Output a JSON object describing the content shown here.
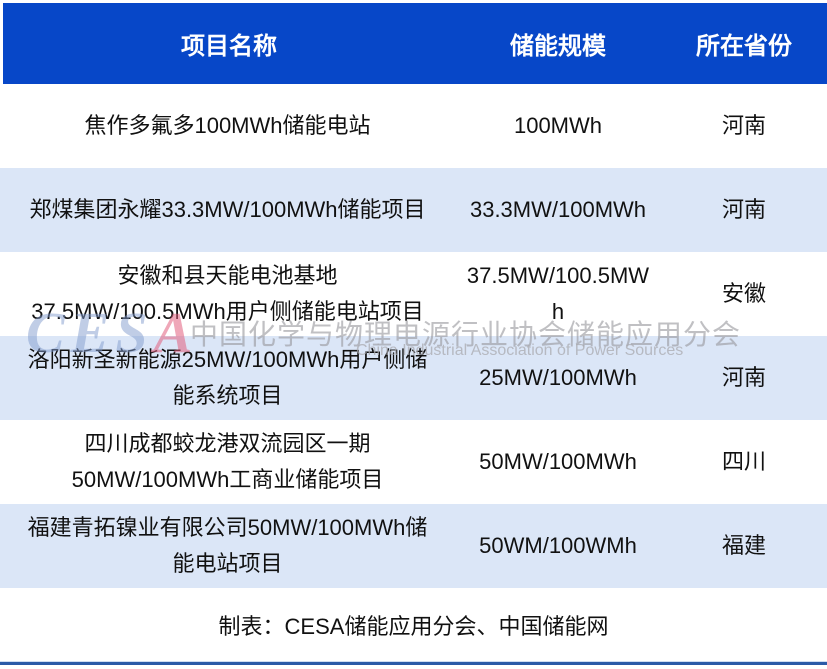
{
  "header": {
    "columns": [
      "项目名称",
      "储能规模",
      "所在省份"
    ]
  },
  "table": {
    "rows": [
      {
        "name": "焦作多氟多100MWh储能电站",
        "scale": "100MWh",
        "province": "河南"
      },
      {
        "name": "郑煤集团永耀33.3MW/100MWh储能项目",
        "scale": "33.3MW/100MWh",
        "province": "河南"
      },
      {
        "name": "安徽和县天能电池基地\n37.5MW/100.5MWh用户侧储能电站项目",
        "scale": "37.5MW/100.5MWh",
        "province": "安徽"
      },
      {
        "name": "洛阳新圣新能源25MW/100MWh用户侧储\n能系统项目",
        "scale": "25MW/100MWh",
        "province": "河南"
      },
      {
        "name": "四川成都蛟龙港双流园区一期\n50MW/100MWh工商业储能项目",
        "scale": "50MW/100MWh",
        "province": "四川"
      },
      {
        "name": "福建青拓镍业有限公司50MW/100MWh储\n能电站项目",
        "scale": "50WM/100WMh",
        "province": "福建"
      }
    ]
  },
  "footer": {
    "caption": "制表：CESA储能应用分会、中国储能网"
  },
  "watermark": {
    "logo_prefix": "CES",
    "logo_suffix": "A",
    "title_cn": "中国化学与物理电源行业协会储能应用分会",
    "subtitle_en": "China Industrial Association of Power Sources"
  },
  "colors": {
    "header_bg": "#0747c8",
    "header_text": "#ffffff",
    "alt_row_bg": "#dbe6f7",
    "body_text": "#111111",
    "bottom_line": "#2b5aa7",
    "watermark_gray": "#96969b",
    "watermark_logo_blue": "#829bcd",
    "watermark_logo_red": "#e15f7d"
  }
}
